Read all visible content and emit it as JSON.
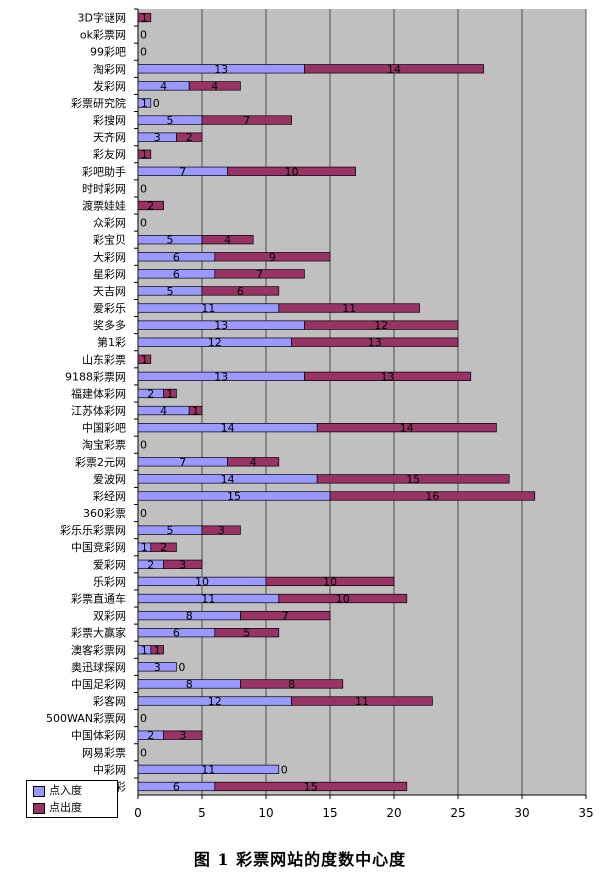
{
  "caption": "图 1   彩票网站的度数中心度",
  "legend": {
    "in_label": "点入度",
    "out_label": "点出度"
  },
  "colors": {
    "in": "#9999ff",
    "out": "#993366",
    "plot_bg": "#c0c0c0",
    "grid": "#000000"
  },
  "chart_data": {
    "type": "bar",
    "orientation": "horizontal",
    "stacked": true,
    "xlim": [
      0,
      35
    ],
    "xticks": [
      0,
      5,
      10,
      15,
      20,
      25,
      30,
      35
    ],
    "grid": true,
    "legend_position": "bottom-left",
    "categories": [
      "3D字谜网",
      "ok彩票网",
      "99彩吧",
      "淘彩网",
      "发彩网",
      "彩票研究院",
      "彩搜网",
      "天齐网",
      "彩友网",
      "彩吧助手",
      "时时彩网",
      "渡票娃娃",
      "众彩网",
      "彩宝贝",
      "大彩网",
      "星彩网",
      "天吉网",
      "爱彩乐",
      "奖多多",
      "第1彩",
      "山东彩票",
      "9188彩票网",
      "福建体彩网",
      "江苏体彩网",
      "中国彩吧",
      "淘宝彩票",
      "彩票2元网",
      "爱波网",
      "彩经网",
      "360彩票",
      "彩乐乐彩票网",
      "中国竞彩网",
      "爱彩网",
      "乐彩网",
      "彩票直通车",
      "双彩网",
      "彩票大赢家",
      "澳客彩票网",
      "奥迅球探网",
      "中国足彩网",
      "彩客网",
      "500WAN彩票网",
      "中国体彩网",
      "网易彩票",
      "中彩网",
      "乐彩"
    ],
    "series": [
      {
        "name": "点入度",
        "values": [
          0,
          0,
          0,
          13,
          4,
          1,
          5,
          3,
          0,
          7,
          0,
          0,
          0,
          5,
          6,
          6,
          5,
          11,
          13,
          12,
          0,
          13,
          2,
          4,
          14,
          0,
          7,
          14,
          15,
          0,
          5,
          1,
          2,
          10,
          11,
          8,
          6,
          1,
          3,
          8,
          12,
          0,
          2,
          0,
          11,
          6
        ]
      },
      {
        "name": "点出度",
        "values": [
          1,
          0,
          0,
          14,
          4,
          0,
          7,
          2,
          1,
          10,
          0,
          2,
          0,
          4,
          9,
          7,
          6,
          11,
          12,
          13,
          1,
          13,
          1,
          1,
          14,
          0,
          4,
          15,
          16,
          0,
          3,
          2,
          3,
          10,
          10,
          7,
          5,
          1,
          0,
          8,
          11,
          0,
          3,
          0,
          0,
          15
        ]
      }
    ]
  }
}
